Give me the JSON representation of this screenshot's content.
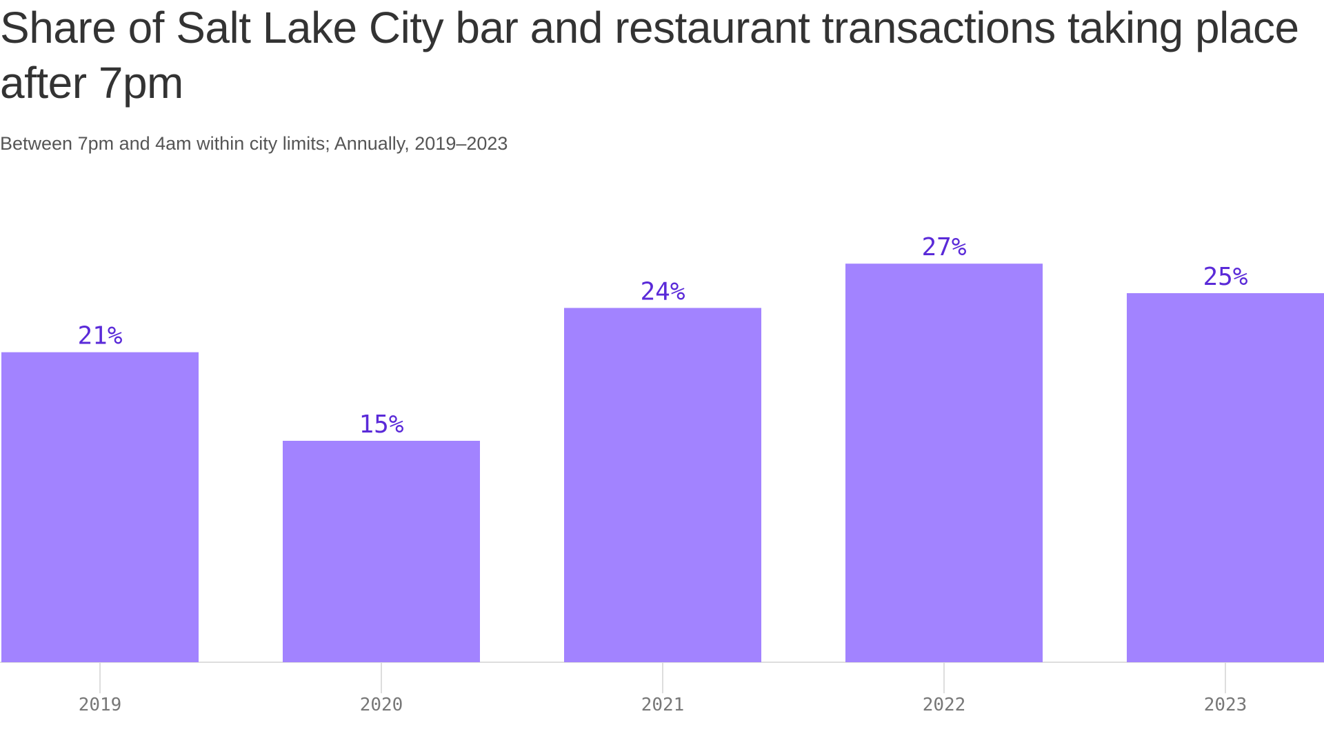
{
  "chart_data": {
    "type": "bar",
    "title": "Share of Salt Lake City bar and restaurant transactions taking place after 7pm",
    "subtitle": "Between 7pm and 4am within city limits; Annually, 2019–2023",
    "categories": [
      "2019",
      "2020",
      "2021",
      "2022",
      "2023"
    ],
    "values": [
      21,
      15,
      24,
      27,
      25
    ],
    "value_labels": [
      "21%",
      "15%",
      "24%",
      "27%",
      "25%"
    ],
    "ylim": [
      0,
      27
    ],
    "grid": false,
    "colors": {
      "bar": "#a283ff",
      "value_label": "#5a2ad8",
      "title": "#333333",
      "tick_label": "#777777"
    }
  }
}
